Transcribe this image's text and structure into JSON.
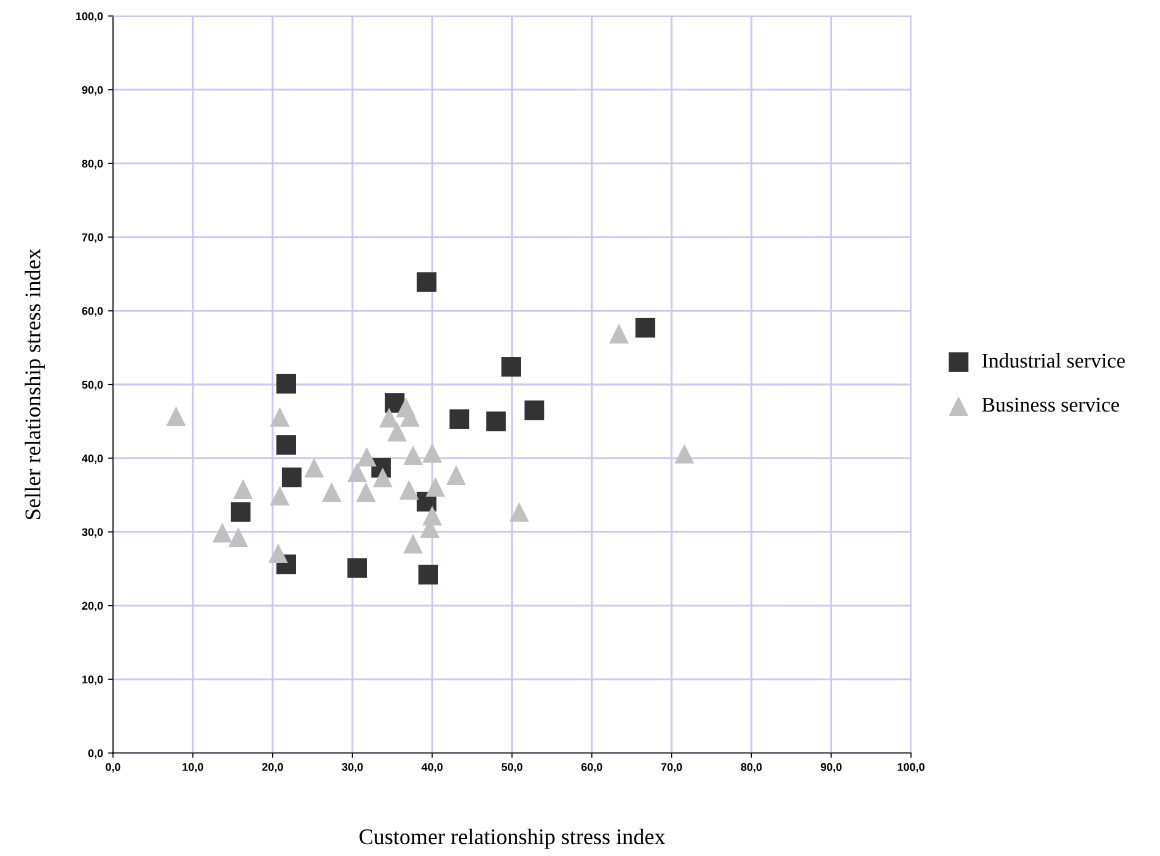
{
  "chart_data": {
    "type": "scatter",
    "xlabel": "Customer relationship stress index",
    "ylabel": "Seller relationship stress index",
    "xlim": [
      0,
      100
    ],
    "ylim": [
      0,
      100
    ],
    "xticks": [
      {
        "value": 0,
        "label": "0,0"
      },
      {
        "value": 10,
        "label": "10,0"
      },
      {
        "value": 20,
        "label": "20,0"
      },
      {
        "value": 30,
        "label": "30,0"
      },
      {
        "value": 40,
        "label": "40,0"
      },
      {
        "value": 50,
        "label": "50,0"
      },
      {
        "value": 60,
        "label": "60,0"
      },
      {
        "value": 70,
        "label": "70,0"
      },
      {
        "value": 80,
        "label": "80,0"
      },
      {
        "value": 90,
        "label": "90,0"
      },
      {
        "value": 100,
        "label": "100,0"
      }
    ],
    "yticks": [
      {
        "value": 0,
        "label": "0,0"
      },
      {
        "value": 10,
        "label": "10,0"
      },
      {
        "value": 20,
        "label": "20,0"
      },
      {
        "value": 30,
        "label": "30,0"
      },
      {
        "value": 40,
        "label": "40,0"
      },
      {
        "value": 50,
        "label": "50,0"
      },
      {
        "value": 60,
        "label": "60,0"
      },
      {
        "value": 70,
        "label": "70,0"
      },
      {
        "value": 80,
        "label": "80,0"
      },
      {
        "value": 90,
        "label": "90,0"
      },
      {
        "value": 100,
        "label": "100,0"
      }
    ],
    "grid": true,
    "legend": "right",
    "series": [
      {
        "name": "Industrial service",
        "color": "#333333",
        "marker": "square",
        "x": [
          21.7,
          21.7,
          22.4,
          16.0,
          21.7,
          30.6,
          39.5,
          35.3,
          43.4,
          33.6,
          39.3,
          39.3,
          49.9,
          48.0,
          52.8,
          66.7
        ],
        "values": [
          50.1,
          41.8,
          37.4,
          32.7,
          25.6,
          25.1,
          24.2,
          47.5,
          45.3,
          38.7,
          34.1,
          63.9,
          52.4,
          45.0,
          46.5,
          57.7
        ]
      },
      {
        "name": "Business service",
        "color": "#c0c0c0",
        "marker": "triangle",
        "x": [
          7.9,
          20.9,
          16.3,
          20.9,
          13.7,
          15.7,
          20.7,
          25.2,
          27.4,
          31.8,
          30.6,
          31.7,
          33.8,
          36.7,
          34.6,
          37.2,
          35.6,
          37.6,
          40.0,
          37.1,
          40.4,
          43.0,
          40.0,
          39.7,
          37.6,
          50.9,
          63.4,
          71.6
        ],
        "values": [
          45.7,
          45.6,
          35.8,
          34.9,
          29.9,
          29.3,
          27.1,
          38.7,
          35.4,
          40.2,
          38.1,
          35.4,
          37.4,
          46.9,
          45.5,
          45.6,
          43.6,
          40.4,
          40.7,
          35.7,
          36.1,
          37.7,
          32.2,
          30.5,
          28.4,
          32.7,
          56.9,
          40.6
        ]
      }
    ]
  }
}
